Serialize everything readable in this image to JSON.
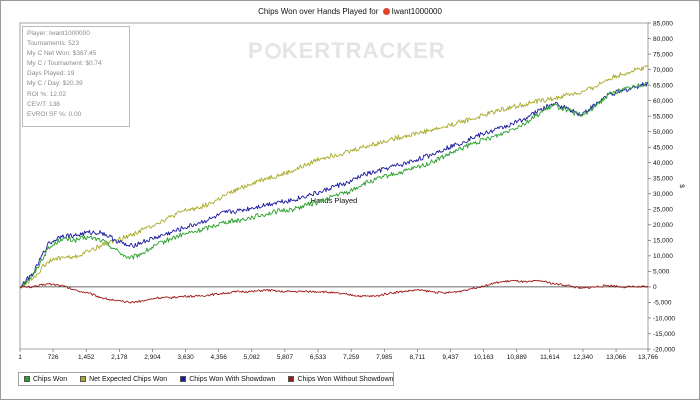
{
  "title": "Chips Won over Hands Played for",
  "player_name": "Iwant1000000",
  "watermark": "POKERTRACKER",
  "stats": [
    "Player: Iwant1000000",
    "Tournaments: 523",
    "My C Net Won: $387.45",
    "My C / Tournament: $0.74",
    "Days Played: 19",
    "My C / Day: $20.39",
    "ROI %: 12.02",
    "CEV/T: 138",
    "EVROI SF %: 0.00"
  ],
  "right_axis_marker": "$",
  "chart_data": {
    "type": "line",
    "title": "Chips Won over Hands Played for Iwant1000000",
    "xlabel": "Hands Played",
    "ylabel": "",
    "xlim": [
      1,
      13766
    ],
    "ylim": [
      -20000,
      85000
    ],
    "x_ticks": [
      1,
      726,
      1452,
      2178,
      2904,
      3630,
      4356,
      5082,
      5807,
      6533,
      7259,
      7985,
      8711,
      9437,
      10163,
      10889,
      11614,
      12340,
      13066,
      13766
    ],
    "x_tick_labels": [
      "1",
      "726",
      "1,452",
      "2,178",
      "2,904",
      "3,630",
      "4,356",
      "5,082",
      "5,807",
      "6,533",
      "7,259",
      "7,985",
      "8,711",
      "9,437",
      "10,163",
      "10,889",
      "11,614",
      "12,340",
      "13,066",
      "13,766"
    ],
    "y_ticks": [
      -20000,
      -15000,
      -10000,
      -5000,
      0,
      5000,
      10000,
      15000,
      20000,
      25000,
      30000,
      35000,
      40000,
      45000,
      50000,
      55000,
      60000,
      65000,
      70000,
      75000,
      80000,
      85000
    ],
    "y_tick_labels": [
      "-20,000",
      "-15,000",
      "-10,000",
      "-5,000",
      "0",
      "5,000",
      "10,000",
      "15,000",
      "20,000",
      "25,000",
      "30,000",
      "35,000",
      "40,000",
      "45,000",
      "50,000",
      "55,000",
      "60,000",
      "65,000",
      "70,000",
      "75,000",
      "80,000",
      "85,000"
    ],
    "grid": false,
    "legend_position": "bottom-left",
    "series": [
      {
        "name": "Chips Won",
        "color": "#2aa02a",
        "x": [
          1,
          300,
          600,
          900,
          1200,
          1500,
          1800,
          2100,
          2400,
          2700,
          3000,
          3300,
          3600,
          3900,
          4200,
          4500,
          4800,
          5100,
          5400,
          5700,
          6000,
          6300,
          6600,
          6900,
          7200,
          7500,
          7800,
          8100,
          8400,
          8700,
          9000,
          9300,
          9600,
          9900,
          10200,
          10500,
          10800,
          11100,
          11400,
          11700,
          12000,
          12300,
          12600,
          12900,
          13200,
          13500,
          13766
        ],
        "values": [
          0,
          4000,
          12000,
          15500,
          15000,
          16000,
          15000,
          12000,
          9000,
          11000,
          13500,
          15500,
          17000,
          18000,
          19500,
          21000,
          21500,
          22500,
          23500,
          24500,
          25000,
          26500,
          27500,
          29500,
          30500,
          33000,
          34500,
          36000,
          37000,
          38500,
          40000,
          42000,
          44000,
          46000,
          47500,
          49000,
          51000,
          53000,
          56000,
          58500,
          57000,
          55000,
          58000,
          62000,
          63500,
          64500,
          66000
        ]
      },
      {
        "name": "Net Expected Chips Won",
        "color": "#aaaa2a",
        "x": [
          1,
          300,
          600,
          900,
          1200,
          1500,
          1800,
          2100,
          2400,
          2700,
          3000,
          3300,
          3600,
          3900,
          4200,
          4500,
          4800,
          5100,
          5400,
          5700,
          6000,
          6300,
          6600,
          6900,
          7200,
          7500,
          7800,
          8100,
          8400,
          8700,
          9000,
          9300,
          9600,
          9900,
          10200,
          10500,
          10800,
          11100,
          11400,
          11700,
          12000,
          12300,
          12600,
          12900,
          13200,
          13500,
          13766
        ],
        "values": [
          0,
          3000,
          8000,
          9500,
          9500,
          11500,
          13500,
          15000,
          16500,
          18500,
          20500,
          22500,
          24500,
          25500,
          27000,
          29500,
          31500,
          33500,
          35000,
          36000,
          37500,
          39500,
          41500,
          42500,
          43500,
          45000,
          46000,
          47500,
          48500,
          49500,
          50500,
          51500,
          53000,
          54000,
          55500,
          57000,
          58000,
          59000,
          60000,
          60500,
          62000,
          62500,
          64500,
          67000,
          68500,
          70000,
          71000
        ]
      },
      {
        "name": "Chips Won With Showdown",
        "color": "#1a1aa0",
        "x": [
          1,
          300,
          600,
          900,
          1200,
          1500,
          1800,
          2100,
          2400,
          2700,
          3000,
          3300,
          3600,
          3900,
          4200,
          4500,
          4800,
          5100,
          5400,
          5700,
          6000,
          6300,
          6600,
          6900,
          7200,
          7500,
          7800,
          8100,
          8400,
          8700,
          9000,
          9300,
          9600,
          9900,
          10200,
          10500,
          10800,
          11100,
          11400,
          11700,
          12000,
          12300,
          12600,
          12900,
          13200,
          13500,
          13766
        ],
        "values": [
          0,
          4500,
          13500,
          16500,
          16500,
          17500,
          17500,
          15000,
          13000,
          14500,
          16000,
          17500,
          19000,
          20500,
          22000,
          24000,
          24500,
          25500,
          26500,
          27500,
          28000,
          29500,
          30500,
          32500,
          33500,
          36000,
          37000,
          38500,
          39500,
          41000,
          42500,
          44500,
          46000,
          48000,
          49500,
          51000,
          52500,
          54500,
          57000,
          59000,
          57500,
          55500,
          58500,
          62000,
          63000,
          64500,
          65500
        ]
      },
      {
        "name": "Chips Won Without Showdown",
        "color": "#a01a1a",
        "x": [
          1,
          300,
          600,
          900,
          1200,
          1500,
          1800,
          2100,
          2400,
          2700,
          3000,
          3300,
          3600,
          3900,
          4200,
          4500,
          4800,
          5100,
          5400,
          5700,
          6000,
          6300,
          6600,
          6900,
          7200,
          7500,
          7800,
          8100,
          8400,
          8700,
          9000,
          9300,
          9600,
          9900,
          10200,
          10500,
          10800,
          11100,
          11400,
          11700,
          12000,
          12300,
          12600,
          12900,
          13200,
          13500,
          13766
        ],
        "values": [
          0,
          0,
          1000,
          500,
          -1000,
          -2000,
          -3500,
          -4500,
          -5000,
          -4500,
          -3500,
          -3500,
          -3000,
          -3000,
          -2500,
          -2000,
          -1500,
          -1500,
          -1000,
          -1500,
          -1500,
          -1500,
          -1500,
          -2000,
          -2500,
          -3000,
          -3000,
          -2000,
          -1500,
          -1000,
          -1500,
          -2000,
          -1500,
          -500,
          500,
          1500,
          2000,
          1500,
          2000,
          1000,
          500,
          -500,
          0,
          500,
          0,
          0,
          0
        ]
      }
    ]
  }
}
